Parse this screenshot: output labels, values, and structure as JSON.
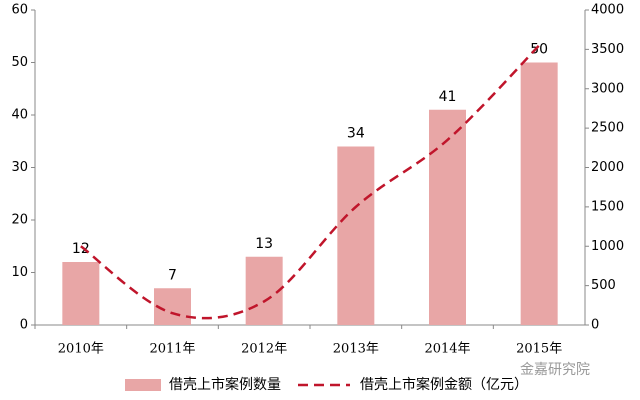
{
  "chart_data": {
    "type": "bar-line",
    "categories": [
      "2010年",
      "2011年",
      "2012年",
      "2013年",
      "2014年",
      "2015年"
    ],
    "series": [
      {
        "name": "借壳上市案例数量",
        "type": "bar",
        "color": "#e8a6a6",
        "values": [
          12,
          7,
          13,
          34,
          41,
          50
        ]
      },
      {
        "name": "借壳上市案例金额（亿元）",
        "type": "line",
        "axis": "y2",
        "color": "#c0152b",
        "dashed": true,
        "smooth": true,
        "values": [
          1000,
          150,
          300,
          1500,
          2350,
          3550
        ]
      }
    ],
    "ylim": [
      0,
      60
    ],
    "yticks": [
      0,
      10,
      20,
      30,
      40,
      50,
      60
    ],
    "y2lim": [
      0,
      4000
    ],
    "y2ticks": [
      0,
      500,
      1000,
      1500,
      2000,
      2500,
      3000,
      3500,
      4000
    ],
    "grid": false,
    "legend": "bottom",
    "watermark": "金嘉研究院"
  }
}
